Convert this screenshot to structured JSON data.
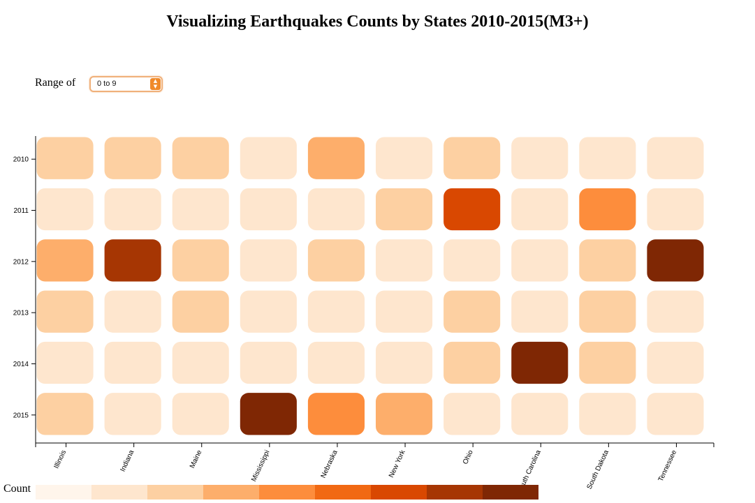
{
  "title": "Visualizing Earthquakes Counts by States 2010-2015(M3+)",
  "control": {
    "label": "Range of",
    "selected": "0 to 9"
  },
  "legend": {
    "title": "Count",
    "colors": [
      "#fff5eb",
      "#fee6ce",
      "#fdd0a2",
      "#fdae6b",
      "#fd8d3c",
      "#f16913",
      "#d94801",
      "#a63603",
      "#7f2704"
    ]
  },
  "chart_data": {
    "type": "heatmap",
    "x_categories": [
      "Illinois",
      "Indiana",
      "Maine",
      "Mississippi",
      "Nebraska",
      "New York",
      "Ohio",
      "South Carolina",
      "South Dakota",
      "Tennessee"
    ],
    "y_categories": [
      "2010",
      "2011",
      "2012",
      "2013",
      "2014",
      "2015"
    ],
    "values": [
      [
        2,
        2,
        2,
        1,
        3,
        1,
        2,
        1,
        1,
        1
      ],
      [
        1,
        1,
        1,
        1,
        1,
        2,
        6,
        1,
        4,
        1
      ],
      [
        3,
        7,
        2,
        1,
        2,
        1,
        1,
        1,
        2,
        8
      ],
      [
        2,
        1,
        2,
        1,
        1,
        1,
        2,
        1,
        2,
        1
      ],
      [
        1,
        1,
        1,
        1,
        1,
        1,
        2,
        8,
        2,
        1
      ],
      [
        2,
        1,
        1,
        8,
        4,
        3,
        1,
        1,
        1,
        1
      ]
    ],
    "xlabel": "",
    "ylabel": ""
  }
}
